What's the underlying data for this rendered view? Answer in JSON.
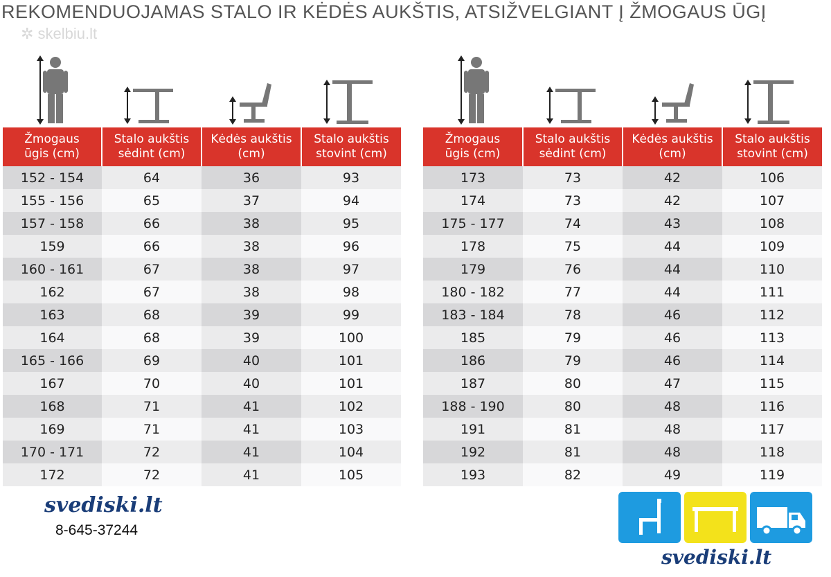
{
  "title": "REKOMENDUOJAMAS STALO IR KĖDĖS AUKŠTIS, ATSIŽVELGIANT Į ŽMOGAUS ŪGĮ",
  "watermark": "skelbiu.lt",
  "headers": [
    "Žmogaus ūgis (cm)",
    "Stalo aukštis sėdint (cm)",
    "Kėdės aukštis (cm)",
    "Stalo aukštis stovint (cm)"
  ],
  "header_lines": [
    [
      "Žmogaus",
      "ūgis (cm)"
    ],
    [
      "Stalo aukštis",
      "sėdint (cm)"
    ],
    [
      "Kėdės aukštis",
      "(cm)"
    ],
    [
      "Stalo aukštis",
      "stovint (cm)"
    ]
  ],
  "table_left": [
    [
      "152 - 154",
      "64",
      "36",
      "93"
    ],
    [
      "155 - 156",
      "65",
      "37",
      "94"
    ],
    [
      "157 - 158",
      "66",
      "38",
      "95"
    ],
    [
      "159",
      "66",
      "38",
      "96"
    ],
    [
      "160 - 161",
      "67",
      "38",
      "97"
    ],
    [
      "162",
      "67",
      "38",
      "98"
    ],
    [
      "163",
      "68",
      "39",
      "99"
    ],
    [
      "164",
      "68",
      "39",
      "100"
    ],
    [
      "165 - 166",
      "69",
      "40",
      "101"
    ],
    [
      "167",
      "70",
      "40",
      "101"
    ],
    [
      "168",
      "71",
      "41",
      "102"
    ],
    [
      "169",
      "71",
      "41",
      "103"
    ],
    [
      "170 - 171",
      "72",
      "41",
      "104"
    ],
    [
      "172",
      "72",
      "41",
      "105"
    ]
  ],
  "table_right": [
    [
      "173",
      "73",
      "42",
      "106"
    ],
    [
      "174",
      "73",
      "42",
      "107"
    ],
    [
      "175 - 177",
      "74",
      "43",
      "108"
    ],
    [
      "178",
      "75",
      "44",
      "109"
    ],
    [
      "179",
      "76",
      "44",
      "110"
    ],
    [
      "180 - 182",
      "77",
      "44",
      "111"
    ],
    [
      "183 - 184",
      "78",
      "46",
      "112"
    ],
    [
      "185",
      "79",
      "46",
      "113"
    ],
    [
      "186",
      "79",
      "46",
      "114"
    ],
    [
      "187",
      "80",
      "47",
      "115"
    ],
    [
      "188 - 190",
      "80",
      "48",
      "116"
    ],
    [
      "191",
      "81",
      "48",
      "117"
    ],
    [
      "192",
      "81",
      "48",
      "118"
    ],
    [
      "193",
      "82",
      "49",
      "119"
    ]
  ],
  "icons": [
    "person-height-icon",
    "sitting-desk-height-icon",
    "chair-height-icon",
    "standing-desk-height-icon"
  ],
  "brand_left": "svediski.lt",
  "phone": "8-645-37244",
  "brand_right": "svediski.lt",
  "tiles": [
    {
      "icon": "chair-icon",
      "color": "#1e9be0"
    },
    {
      "icon": "table-icon",
      "color": "#f3e21b"
    },
    {
      "icon": "truck-icon",
      "color": "#1e9be0"
    }
  ],
  "colors": {
    "header_red": "#d9342b",
    "title_gray": "#555555",
    "brand_navy": "#1a3d78"
  }
}
